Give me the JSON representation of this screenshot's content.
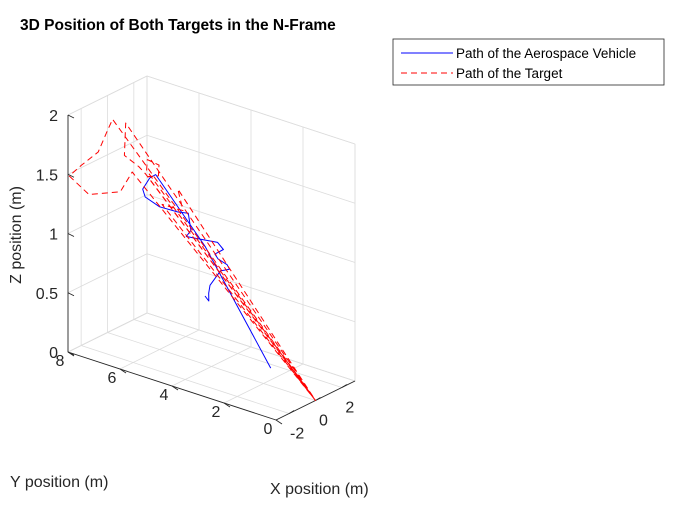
{
  "chart_data": {
    "type": "line3d",
    "title": "3D Position of Both Targets in the N-Frame",
    "xlabel": "X position (m)",
    "ylabel": "Y position (m)",
    "zlabel": "Z position (m)",
    "xlim": [
      -3,
      3
    ],
    "ylim": [
      0,
      8
    ],
    "zlim": [
      0,
      2
    ],
    "xticks": [
      -2,
      0,
      2
    ],
    "yticks": [
      0,
      2,
      4,
      6,
      8
    ],
    "zticks": [
      0,
      0.5,
      1,
      1.5,
      2
    ],
    "xtick_labels": [
      "-2",
      "0",
      "2"
    ],
    "ytick_labels": [
      "0",
      "2",
      "4",
      "6",
      "8"
    ],
    "ztick_labels": [
      "0",
      "0.5",
      "1",
      "1.5",
      "2"
    ],
    "grid": true,
    "legend_position": "top-right",
    "series": [
      {
        "name": "Path of the Aerospace Vehicle",
        "color": "#0000ff",
        "style": "solid",
        "points": [
          [
            0.55,
            2.0,
            0.1
          ],
          [
            0.5,
            4.5,
            0.95
          ],
          [
            0.5,
            6.4,
            1.42
          ],
          [
            0.45,
            6.6,
            1.38
          ],
          [
            0.3,
            6.8,
            1.28
          ],
          [
            0.3,
            6.7,
            1.22
          ],
          [
            0.6,
            6.3,
            1.15
          ],
          [
            1.0,
            5.8,
            1.12
          ],
          [
            1.2,
            5.5,
            1.12
          ],
          [
            1.0,
            5.3,
            1.0
          ],
          [
            0.85,
            5.4,
            0.95
          ],
          [
            1.0,
            5.0,
            0.95
          ],
          [
            1.25,
            4.4,
            0.95
          ],
          [
            1.1,
            4.1,
            0.92
          ],
          [
            0.85,
            4.3,
            0.88
          ],
          [
            0.5,
            4.0,
            0.88
          ],
          [
            -0.2,
            3.3,
            0.92
          ],
          [
            -1.2,
            2.7,
            0.98
          ],
          [
            -1.3,
            3.0,
            0.95
          ],
          [
            -1.3,
            3.4,
            0.8
          ],
          [
            -1.2,
            3.5,
            0.72
          ],
          [
            -0.6,
            3.8,
            0.6
          ],
          [
            0.3,
            4.4,
            0.55
          ]
        ]
      },
      {
        "name": "Path of the Target",
        "color": "#ff0000",
        "style": "dashed",
        "points": [
          [
            0,
            0,
            0
          ],
          [
            -0.4,
            7.6,
            1.85
          ],
          [
            -0.35,
            7.8,
            1.75
          ],
          [
            -0.9,
            7.9,
            1.58
          ],
          [
            -2.0,
            8.0,
            1.52
          ],
          [
            -2.9,
            8.0,
            1.48
          ],
          [
            -2.6,
            7.4,
            1.35
          ],
          [
            -1.4,
            6.8,
            1.35
          ],
          [
            -0.3,
            6.9,
            1.45
          ],
          [
            0,
            0,
            0
          ],
          [
            0.2,
            7.4,
            1.8
          ],
          [
            -0.1,
            7.3,
            1.55
          ],
          [
            0.4,
            7.0,
            1.45
          ],
          [
            0.5,
            6.8,
            1.4
          ],
          [
            0,
            0,
            0
          ],
          [
            0.6,
            6.8,
            1.42
          ],
          [
            0.75,
            6.85,
            1.5
          ],
          [
            1.15,
            6.6,
            1.45
          ],
          [
            0.9,
            6.5,
            1.38
          ],
          [
            0.3,
            6.6,
            1.4
          ],
          [
            0,
            0,
            0
          ],
          [
            -0.2,
            5.8,
            1.25
          ],
          [
            0.4,
            5.3,
            1.2
          ],
          [
            0.6,
            5.6,
            1.35
          ],
          [
            0,
            0,
            0
          ]
        ]
      }
    ]
  }
}
